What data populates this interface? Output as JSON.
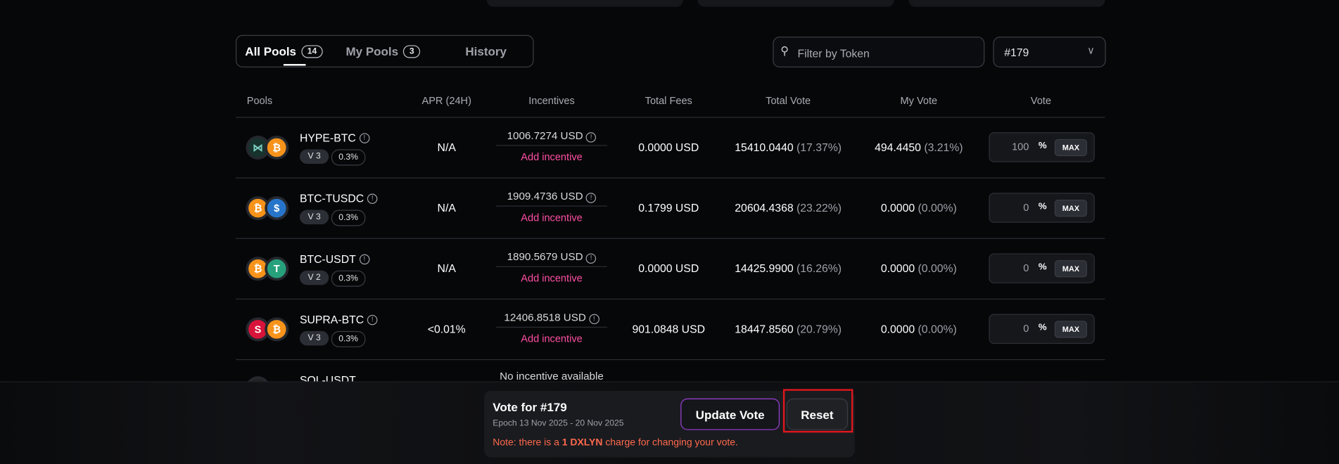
{
  "tabs": [
    {
      "label": "All Pools",
      "count": "14",
      "active": true
    },
    {
      "label": "My Pools",
      "count": "3"
    },
    {
      "label": "History"
    }
  ],
  "filter": {
    "placeholder": "Filter by Token"
  },
  "epoch_select": {
    "value": "#179"
  },
  "columns": [
    "Pools",
    "APR (24H)",
    "Incentives",
    "Total Fees",
    "Total Vote",
    "My Vote",
    "Vote"
  ],
  "rows": [
    {
      "pool": "HYPE-BTC",
      "tokens": [
        "hype",
        "btc"
      ],
      "version": "V 3",
      "fee": "0.3%",
      "apr": "N/A",
      "incentive": "1006.7274 USD",
      "add": "Add incentive",
      "fees": "0.0000 USD",
      "total_vote": "15410.0440",
      "total_vote_pct": "(17.37%)",
      "my_vote": "494.4450",
      "my_vote_pct": "(3.21%)",
      "vote": "100",
      "pct": "%",
      "max": "MAX"
    },
    {
      "pool": "BTC-TUSDC",
      "tokens": [
        "btc",
        "usdc"
      ],
      "version": "V 3",
      "fee": "0.3%",
      "apr": "N/A",
      "incentive": "1909.4736 USD",
      "add": "Add incentive",
      "fees": "0.1799 USD",
      "total_vote": "20604.4368",
      "total_vote_pct": "(23.22%)",
      "my_vote": "0.0000",
      "my_vote_pct": "(0.00%)",
      "vote": "0",
      "pct": "%",
      "max": "MAX"
    },
    {
      "pool": "BTC-USDT",
      "tokens": [
        "btc",
        "usdt"
      ],
      "version": "V 2",
      "fee": "0.3%",
      "apr": "N/A",
      "incentive": "1890.5679 USD",
      "add": "Add incentive",
      "fees": "0.0000 USD",
      "total_vote": "14425.9900",
      "total_vote_pct": "(16.26%)",
      "my_vote": "0.0000",
      "my_vote_pct": "(0.00%)",
      "vote": "0",
      "pct": "%",
      "max": "MAX"
    },
    {
      "pool": "SUPRA-BTC",
      "tokens": [
        "supra",
        "btc"
      ],
      "version": "V 3",
      "fee": "0.3%",
      "apr": "<0.01%",
      "incentive": "12406.8518 USD",
      "add": "Add incentive",
      "fees": "901.0848 USD",
      "total_vote": "18447.8560",
      "total_vote_pct": "(20.79%)",
      "my_vote": "0.0000",
      "my_vote_pct": "(0.00%)",
      "vote": "0",
      "pct": "%",
      "max": "MAX"
    }
  ],
  "partial_row": {
    "pool": "SOL-USDT",
    "incentive": "No incentive available"
  },
  "vote_panel": {
    "title": "Vote for #179",
    "epoch": "Epoch 13 Nov 2025 - 20 Nov 2025",
    "update": "Update Vote",
    "reset": "Reset",
    "note_pre": "Note: there is a ",
    "note_bold": "1 DXLYN",
    "note_post": " charge for changing your vote."
  },
  "colors": {
    "accent_pink": "#ff4fa3",
    "note": "#ff6a4d",
    "highlight": "#e0161e",
    "btc": "#f7931a",
    "usdc": "#2775ca",
    "usdt": "#26a17b",
    "supra": "#d8143a"
  }
}
